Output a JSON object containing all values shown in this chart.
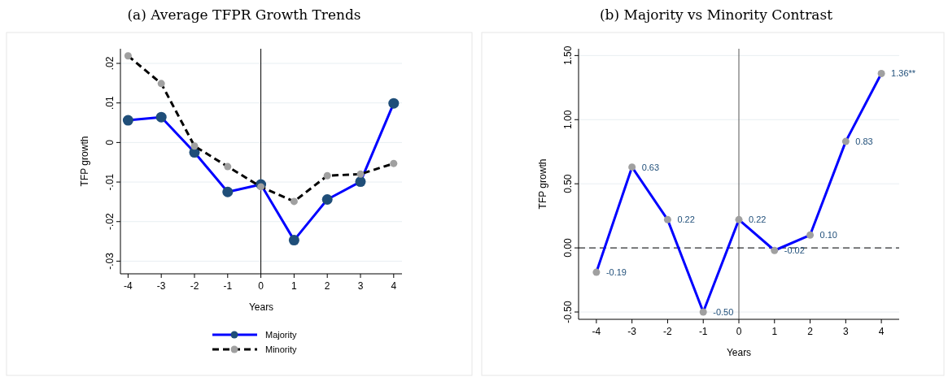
{
  "chart_data": [
    {
      "type": "line",
      "title": "(a) Average TFPR Growth Trends",
      "xlabel": "Years",
      "ylabel": "TFP growth",
      "x": [
        -4,
        -3,
        -2,
        -1,
        0,
        1,
        2,
        3,
        4
      ],
      "series": [
        {
          "name": "Majority",
          "color": "#0000ff",
          "line_style": "solid",
          "values": [
            0.0056,
            0.0064,
            -0.0025,
            -0.0125,
            -0.0106,
            -0.0247,
            -0.0144,
            -0.0099,
            0.0099
          ]
        },
        {
          "name": "Minority",
          "color": "#000000",
          "line_style": "dashed",
          "values": [
            0.0219,
            0.0149,
            -0.0009,
            -0.0061,
            -0.0112,
            -0.0149,
            -0.0084,
            -0.008,
            -0.0053
          ]
        }
      ],
      "xlim": [
        -4.23,
        4.25
      ],
      "ylim": [
        -0.0332,
        0.0237
      ],
      "xticks": [
        -4,
        -3,
        -2,
        -1,
        0,
        1,
        2,
        3,
        4
      ],
      "yticks": [
        {
          "value": -0.03,
          "label": "-.03"
        },
        {
          "value": -0.02,
          "label": "-.02"
        },
        {
          "value": -0.01,
          "label": "-.01"
        },
        0,
        {
          "value": 0.01,
          "label": ".01"
        },
        {
          "value": 0.02,
          "label": ".02"
        }
      ],
      "ref_lines": [
        {
          "axis": "x",
          "value": 0,
          "color": "#000000",
          "line_style": "solid"
        }
      ],
      "grid": "y",
      "legend": "bottom",
      "marker": "circle"
    },
    {
      "type": "line",
      "title": "(b) Majority vs Minority Contrast",
      "xlabel": "Years",
      "ylabel": "TFP growth",
      "x": [
        -4,
        -3,
        -2,
        -1,
        0,
        1,
        2,
        3,
        4
      ],
      "series": [
        {
          "color": "#0000ff",
          "values": [
            -0.19,
            0.63,
            0.22,
            -0.5,
            0.22,
            -0.02,
            0.1,
            0.83,
            1.36
          ],
          "value_labels": [
            "-0.19",
            "0.63",
            "0.22",
            "-0.50",
            "0.22",
            "-0.02",
            "0.10",
            "0.83",
            "1.36**"
          ]
        }
      ],
      "xlim": [
        -4.5,
        4.5
      ],
      "ylim": [
        -0.557,
        1.553
      ],
      "xticks": [
        -4,
        -3,
        -2,
        -1,
        0,
        1,
        2,
        3,
        4
      ],
      "yticks": [
        {
          "value": -0.5,
          "label": "-0.50"
        },
        {
          "value": 0,
          "label": "0.00"
        },
        {
          "value": 0.5,
          "label": "0.50"
        },
        {
          "value": 1,
          "label": "1.00"
        },
        {
          "value": 1.5,
          "label": "1.50"
        }
      ],
      "ref_lines": [
        {
          "axis": "x",
          "value": 0,
          "color": "#555555",
          "line_style": "solid"
        },
        {
          "axis": "y",
          "value": 0,
          "color": "#000000",
          "line_style": "dashed"
        }
      ],
      "grid": "y",
      "legend": false,
      "marker": "circle"
    }
  ]
}
